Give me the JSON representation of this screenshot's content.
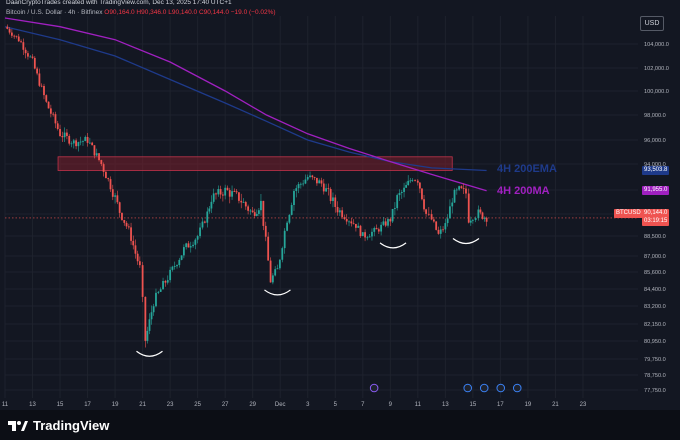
{
  "header": {
    "credit": "DaanCryptoTrades created with TradingView.com, Dec 13, 2025 17:40 UTC+1",
    "symbol_line": "Bitcoin / U.S. Dollar · 4h · Bitfinex",
    "ohlc": "O90,164.0 H90,346.0 L90,140.0 C90,144.0 −19.0 (−0.02%)",
    "currency": "USD"
  },
  "footer": {
    "brand": "TradingView"
  },
  "labels": {
    "ema": "4H 200EMA",
    "ma": "4H 200MA",
    "ema_price": "93,503.8",
    "ma_price": "91,955.0",
    "last_symbol": "BTCUSD",
    "last_price": "90,144.0",
    "countdown": "03:19:15"
  },
  "colors": {
    "bull": "#26a69a",
    "bear": "#ef5350",
    "ema": "#1e3a8a",
    "ma": "#a020c0",
    "resistance": "#7a1f2c",
    "background": "#131722"
  },
  "chart_data": {
    "type": "candlestick",
    "symbol": "BTCUSD",
    "timeframe": "4h",
    "exchange": "Bitfinex",
    "x_tick_labels": [
      "11",
      "13",
      "15",
      "17",
      "19",
      "21",
      "23",
      "25",
      "27",
      "29",
      "Dec",
      "3",
      "5",
      "7",
      "9",
      "11",
      "13",
      "15",
      "17",
      "19",
      "21",
      "23"
    ],
    "y_tick_labels": [
      "104,000.0",
      "102,000.0",
      "100,000.0",
      "98,000.0",
      "96,000.0",
      "94,000.0",
      "92,000.0",
      "90,500.0",
      "88,500.0",
      "87,000.0",
      "85,600.0",
      "84,400.0",
      "83,200.0",
      "82,150.0",
      "80,950.0",
      "79,750.0",
      "78,750.0",
      "77,750.0"
    ],
    "y_tick_values": [
      104000,
      102000,
      100000,
      98000,
      96000,
      94000,
      92000,
      90500,
      88500,
      87000,
      85600,
      84400,
      83200,
      82150,
      80950,
      79750,
      78750,
      77750
    ],
    "price_path": [
      [
        11,
        106000
      ],
      [
        12,
        104500
      ],
      [
        13,
        102500
      ],
      [
        14,
        99000
      ],
      [
        15,
        96500
      ],
      [
        16,
        95800
      ],
      [
        17,
        96000
      ],
      [
        18,
        94000
      ],
      [
        19,
        91500
      ],
      [
        20,
        89000
      ],
      [
        20.8,
        86000
      ],
      [
        21.2,
        81000
      ],
      [
        21.8,
        83500
      ],
      [
        23,
        85500
      ],
      [
        24,
        87500
      ],
      [
        25,
        88500
      ],
      [
        25.7,
        90500
      ],
      [
        26,
        91500
      ],
      [
        27,
        92000
      ],
      [
        28,
        91500
      ],
      [
        29,
        90500
      ],
      [
        29.6,
        91200
      ],
      [
        30.3,
        85000
      ],
      [
        30.8,
        85800
      ],
      [
        31.5,
        90000
      ],
      [
        32,
        92000
      ],
      [
        33,
        93000
      ],
      [
        34,
        92500
      ],
      [
        35,
        91000
      ],
      [
        36,
        90000
      ],
      [
        36.5,
        89500
      ],
      [
        37,
        88500
      ],
      [
        38,
        89000
      ],
      [
        38.5,
        89500
      ],
      [
        39,
        90000
      ],
      [
        39.5,
        91500
      ],
      [
        40,
        92000
      ],
      [
        40.6,
        93000
      ],
      [
        41,
        92800
      ],
      [
        41.6,
        90500
      ],
      [
        42,
        90000
      ],
      [
        42.5,
        88600
      ],
      [
        43,
        89500
      ],
      [
        43.5,
        91500
      ],
      [
        44,
        92000
      ],
      [
        44.5,
        91800
      ],
      [
        44.7,
        90000
      ],
      [
        45,
        90300
      ],
      [
        45.4,
        90500
      ],
      [
        46,
        90144
      ]
    ],
    "ema_200": {
      "name": "4H 200EMA",
      "value_last": 93503.8,
      "path": [
        [
          11,
          106000
        ],
        [
          15,
          104500
        ],
        [
          19,
          103000
        ],
        [
          23,
          101000
        ],
        [
          27,
          99000
        ],
        [
          30,
          97500
        ],
        [
          33,
          96000
        ],
        [
          36,
          95000
        ],
        [
          39,
          94200
        ],
        [
          42,
          93700
        ],
        [
          46,
          93503.8
        ]
      ]
    },
    "ma_200": {
      "name": "4H 200MA",
      "value_last": 91955.0,
      "path": [
        [
          11,
          107000
        ],
        [
          15,
          106000
        ],
        [
          19,
          104500
        ],
        [
          23,
          102500
        ],
        [
          27,
          100000
        ],
        [
          30,
          98000
        ],
        [
          33,
          96500
        ],
        [
          36,
          95300
        ],
        [
          39,
          94200
        ],
        [
          42,
          93200
        ],
        [
          46,
          91955
        ]
      ]
    },
    "resistance_zone": {
      "low": 93500,
      "high": 94600,
      "x_start": 15,
      "x_end": 58
    },
    "last_price": 90144.0,
    "ylim": [
      77000,
      107000
    ],
    "x_axis": "days, Nov 11 to Dec 23",
    "grid": true,
    "annotations": [
      "4H 200EMA",
      "4H 200MA"
    ],
    "curved_markers_at_lows": [
      [
        21.5,
        80800
      ],
      [
        30.8,
        84900
      ],
      [
        39.2,
        88600
      ],
      [
        44.5,
        89000
      ]
    ]
  }
}
